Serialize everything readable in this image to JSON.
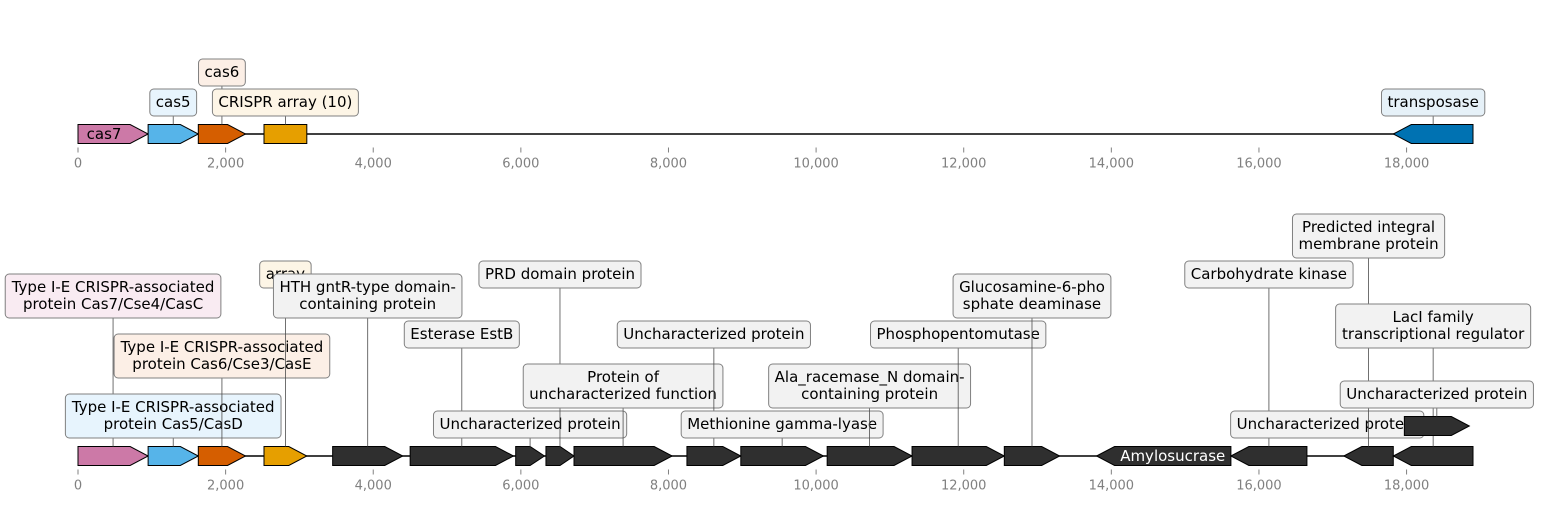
{
  "axis": {
    "min": 0,
    "max": 18900,
    "ticks": [
      0,
      2000,
      4000,
      6000,
      8000,
      10000,
      12000,
      14000,
      16000,
      18000
    ],
    "tick_labels": [
      "0",
      "2,000",
      "4,000",
      "6,000",
      "8,000",
      "10,000",
      "12,000",
      "14,000",
      "16,000",
      "18,000"
    ]
  },
  "tracks": [
    {
      "name": "top-track",
      "features": [
        {
          "start": 0,
          "end": 950,
          "strand": 1,
          "color": "#CC79A7",
          "label": "cas7",
          "label_inline": true,
          "text_color": "#000000"
        },
        {
          "start": 950,
          "end": 1630,
          "strand": 1,
          "color": "#56B4E9",
          "label": "cas5",
          "label_level": 1
        },
        {
          "start": 1630,
          "end": 2270,
          "strand": 1,
          "color": "#D55E00",
          "label": "cas6",
          "label_level": 2
        },
        {
          "start": 2520,
          "end": 3100,
          "strand": 0,
          "color": "#E69F00",
          "label": "CRISPR array (10)",
          "label_level": 1
        },
        {
          "start": 17820,
          "end": 18900,
          "strand": -1,
          "color": "#0072B2",
          "label": "transposase",
          "label_level": 1
        }
      ]
    },
    {
      "name": "bottom-track",
      "features": [
        {
          "start": 0,
          "end": 950,
          "strand": 1,
          "color": "#CC79A7",
          "label": "Type I-E CRISPR-associated\nprotein Cas7/Cse4/CasC",
          "label_level": 5
        },
        {
          "start": 950,
          "end": 1630,
          "strand": 1,
          "color": "#56B4E9",
          "label": "Type I-E CRISPR-associated\nprotein Cas5/CasD",
          "label_level": 1
        },
        {
          "start": 1630,
          "end": 2270,
          "strand": 1,
          "color": "#D55E00",
          "label": "Type I-E CRISPR-associated\nprotein Cas6/Cse3/CasE",
          "label_level": 3
        },
        {
          "start": 2520,
          "end": 3100,
          "strand": 1,
          "color": "#E69F00",
          "label": "array",
          "label_level": 6
        },
        {
          "start": 3450,
          "end": 4400,
          "strand": 1,
          "color": "#2f2f2f",
          "label": "HTH gntR-type domain-\ncontaining protein",
          "label_level": 5
        },
        {
          "start": 4500,
          "end": 5900,
          "strand": 1,
          "color": "#2f2f2f",
          "label": "Esterase EstB",
          "label_level": 4
        },
        {
          "start": 5930,
          "end": 6320,
          "strand": 1,
          "color": "#2f2f2f",
          "label": "Uncharacterized protein",
          "label_level": 1
        },
        {
          "start": 6340,
          "end": 6720,
          "strand": 1,
          "color": "#2f2f2f",
          "label": "PRD domain protein",
          "label_level": 6
        },
        {
          "start": 6720,
          "end": 8050,
          "strand": 1,
          "color": "#2f2f2f",
          "label": "Protein of\nuncharacterized function",
          "label_level": 2
        },
        {
          "start": 8250,
          "end": 8980,
          "strand": 1,
          "color": "#2f2f2f",
          "label": "Uncharacterized protein",
          "label_level": 4
        },
        {
          "start": 8980,
          "end": 10100,
          "strand": 1,
          "color": "#2f2f2f",
          "label": "Methionine gamma-lyase",
          "label_level": 1
        },
        {
          "start": 10150,
          "end": 11300,
          "strand": 1,
          "color": "#2f2f2f",
          "label": "Ala_racemase_N domain-\ncontaining protein",
          "label_level": 2
        },
        {
          "start": 11300,
          "end": 12550,
          "strand": 1,
          "color": "#2f2f2f",
          "label": "Phosphopentomutase",
          "label_level": 4
        },
        {
          "start": 12550,
          "end": 13300,
          "strand": 1,
          "color": "#2f2f2f",
          "label": "Glucosamine-6-pho\nsphate deaminase",
          "label_level": 5
        },
        {
          "start": 13800,
          "end": 15620,
          "strand": -1,
          "color": "#2f2f2f",
          "label": "Amylosucrase",
          "label_inline": true,
          "text_color": "#ffffff"
        },
        {
          "start": 15620,
          "end": 16650,
          "strand": -1,
          "color": "#2f2f2f",
          "label": "Carbohydrate kinase",
          "label_level": 6
        },
        {
          "start": 16600,
          "end": 17250,
          "strand": -1,
          "color": "#2f2f2f",
          "row": 1,
          "label": "Uncharacterized protein",
          "label_level": 1
        },
        {
          "start": 17150,
          "end": 17820,
          "strand": -1,
          "color": "#2f2f2f",
          "label": "Predicted integral\nmembrane protein",
          "label_level": 7
        },
        {
          "start": 17820,
          "end": 18900,
          "strand": -1,
          "color": "#2f2f2f",
          "label": "LacI family\ntranscriptional regulator",
          "label_level": 4
        },
        {
          "start": 17970,
          "end": 18850,
          "strand": 1,
          "color": "#2f2f2f",
          "row": 1,
          "label": "Uncharacterized protein",
          "label_level": 2
        }
      ]
    }
  ],
  "colors": {
    "cas7_box": "#f9ebf2",
    "cas5_box": "#e7f4fd",
    "cas6_box": "#fcefe6",
    "array_box": "#fdf5e6",
    "transposase_box": "#e6f1f8",
    "other_box": "#f2f2f2"
  }
}
